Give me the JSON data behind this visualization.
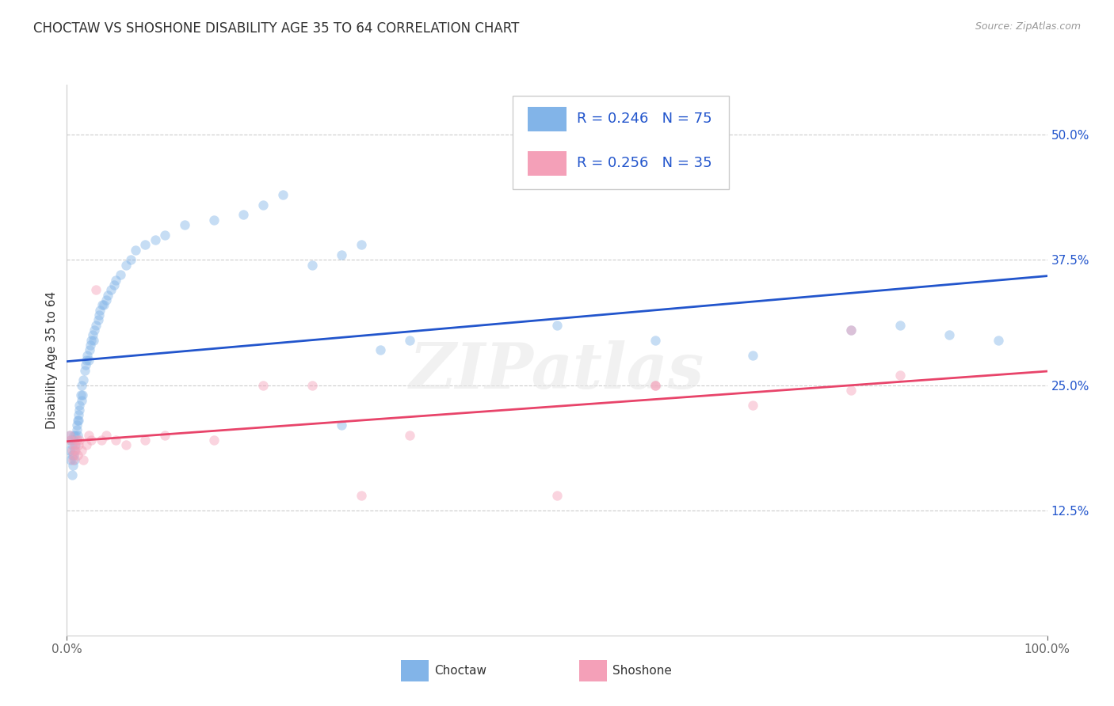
{
  "title": "CHOCTAW VS SHOSHONE DISABILITY AGE 35 TO 64 CORRELATION CHART",
  "source": "Source: ZipAtlas.com",
  "ylabel": "Disability Age 35 to 64",
  "xlim": [
    0.0,
    1.0
  ],
  "ylim": [
    0.0,
    0.55
  ],
  "yticks": [
    0.125,
    0.25,
    0.375,
    0.5
  ],
  "ytick_labels": [
    "12.5%",
    "25.0%",
    "37.5%",
    "50.0%"
  ],
  "xtick_labels": [
    "0.0%",
    "100.0%"
  ],
  "choctaw_color": "#82b4e8",
  "shoshone_color": "#f4a0b8",
  "trendline_choctaw_color": "#2255cc",
  "trendline_shoshone_color": "#e8446a",
  "choctaw_R": 0.246,
  "choctaw_N": 75,
  "shoshone_R": 0.256,
  "shoshone_N": 35,
  "choctaw_x": [
    0.003,
    0.003,
    0.004,
    0.004,
    0.005,
    0.005,
    0.005,
    0.006,
    0.006,
    0.007,
    0.007,
    0.008,
    0.008,
    0.009,
    0.009,
    0.01,
    0.01,
    0.011,
    0.011,
    0.012,
    0.012,
    0.013,
    0.013,
    0.014,
    0.015,
    0.015,
    0.016,
    0.017,
    0.018,
    0.019,
    0.02,
    0.021,
    0.022,
    0.023,
    0.024,
    0.025,
    0.026,
    0.027,
    0.028,
    0.03,
    0.032,
    0.033,
    0.034,
    0.036,
    0.038,
    0.04,
    0.042,
    0.045,
    0.048,
    0.05,
    0.055,
    0.06,
    0.065,
    0.07,
    0.08,
    0.09,
    0.1,
    0.12,
    0.15,
    0.18,
    0.2,
    0.22,
    0.25,
    0.28,
    0.3,
    0.32,
    0.35,
    0.28,
    0.5,
    0.6,
    0.7,
    0.8,
    0.85,
    0.9,
    0.95
  ],
  "choctaw_y": [
    0.2,
    0.185,
    0.195,
    0.175,
    0.18,
    0.19,
    0.16,
    0.17,
    0.195,
    0.18,
    0.2,
    0.185,
    0.175,
    0.19,
    0.2,
    0.205,
    0.21,
    0.215,
    0.2,
    0.22,
    0.215,
    0.225,
    0.23,
    0.24,
    0.235,
    0.25,
    0.24,
    0.255,
    0.265,
    0.27,
    0.275,
    0.28,
    0.275,
    0.285,
    0.29,
    0.295,
    0.3,
    0.295,
    0.305,
    0.31,
    0.315,
    0.32,
    0.325,
    0.33,
    0.33,
    0.335,
    0.34,
    0.345,
    0.35,
    0.355,
    0.36,
    0.37,
    0.375,
    0.385,
    0.39,
    0.395,
    0.4,
    0.41,
    0.415,
    0.42,
    0.43,
    0.44,
    0.37,
    0.38,
    0.39,
    0.285,
    0.295,
    0.21,
    0.31,
    0.295,
    0.28,
    0.305,
    0.31,
    0.3,
    0.295
  ],
  "shoshone_x": [
    0.003,
    0.004,
    0.005,
    0.006,
    0.007,
    0.008,
    0.009,
    0.01,
    0.011,
    0.012,
    0.013,
    0.015,
    0.017,
    0.02,
    0.022,
    0.025,
    0.03,
    0.035,
    0.04,
    0.05,
    0.06,
    0.08,
    0.1,
    0.15,
    0.2,
    0.25,
    0.3,
    0.35,
    0.5,
    0.6,
    0.7,
    0.8,
    0.6,
    0.8,
    0.85
  ],
  "shoshone_y": [
    0.2,
    0.195,
    0.185,
    0.175,
    0.18,
    0.19,
    0.185,
    0.195,
    0.18,
    0.19,
    0.195,
    0.185,
    0.175,
    0.19,
    0.2,
    0.195,
    0.345,
    0.195,
    0.2,
    0.195,
    0.19,
    0.195,
    0.2,
    0.195,
    0.25,
    0.25,
    0.14,
    0.2,
    0.14,
    0.25,
    0.23,
    0.305,
    0.25,
    0.245,
    0.26
  ],
  "background_color": "#ffffff",
  "grid_color": "#cccccc",
  "title_fontsize": 12,
  "axis_label_fontsize": 11,
  "tick_fontsize": 11,
  "legend_fontsize": 13,
  "marker_size": 80,
  "marker_alpha": 0.45
}
